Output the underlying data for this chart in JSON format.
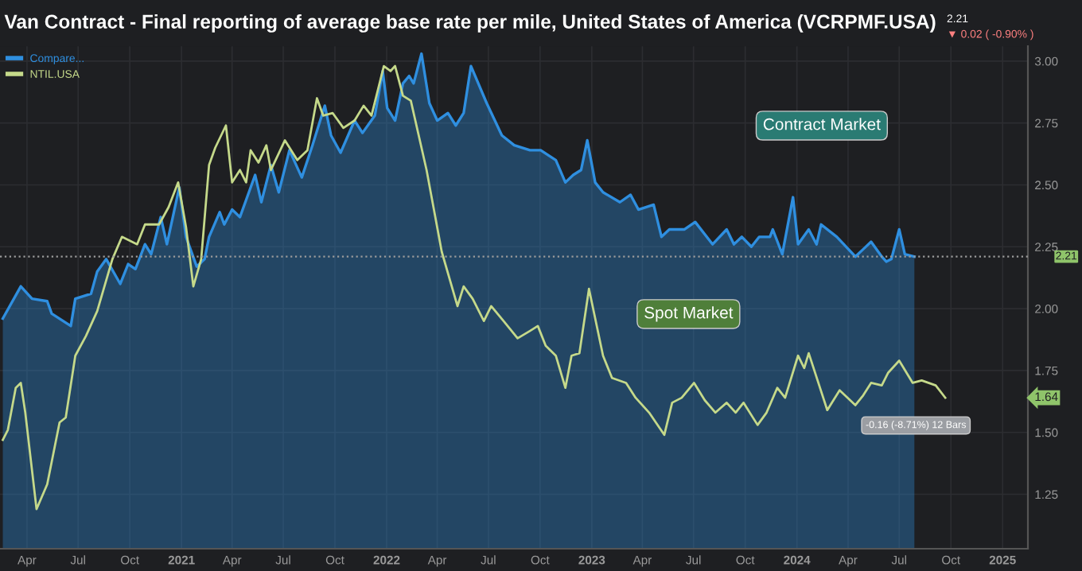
{
  "chart_data": {
    "type": "line",
    "title": "Van Contract - Final reporting of average base rate per mile, United States of America (VCRPMF.USA)",
    "xlim": [
      "2020-02-13",
      "2025-02-15"
    ],
    "ylim": [
      1.03,
      3.06
    ],
    "xticks": [
      {
        "value": "2020-04",
        "label": "Apr"
      },
      {
        "value": "2020-07",
        "label": "Jul"
      },
      {
        "value": "2020-10",
        "label": "Oct"
      },
      {
        "value": "2021",
        "label": "2021"
      },
      {
        "value": "2021-04",
        "label": "Apr"
      },
      {
        "value": "2021-07",
        "label": "Jul"
      },
      {
        "value": "2021-10",
        "label": "Oct"
      },
      {
        "value": "2022",
        "label": "2022"
      },
      {
        "value": "2022-04",
        "label": "Apr"
      },
      {
        "value": "2022-07",
        "label": "Jul"
      },
      {
        "value": "2022-10",
        "label": "Oct"
      },
      {
        "value": "2023",
        "label": "2023"
      },
      {
        "value": "2023-04",
        "label": "Apr"
      },
      {
        "value": "2023-07",
        "label": "Jul"
      },
      {
        "value": "2023-10",
        "label": "Oct"
      },
      {
        "value": "2024",
        "label": "2024"
      },
      {
        "value": "2024-04",
        "label": "Apr"
      },
      {
        "value": "2024-07",
        "label": "Jul"
      },
      {
        "value": "2024-10",
        "label": "Oct"
      },
      {
        "value": "2025",
        "label": "2025"
      }
    ],
    "yticks": [
      {
        "value": 1.25,
        "label": "1.25"
      },
      {
        "value": 1.5,
        "label": "1.50"
      },
      {
        "value": 1.75,
        "label": "1.75"
      },
      {
        "value": 2.0,
        "label": "2.00"
      },
      {
        "value": 2.25,
        "label": "2.25"
      },
      {
        "value": 2.5,
        "label": "2.50"
      },
      {
        "value": 2.75,
        "label": "2.75"
      },
      {
        "value": 3.0,
        "label": "3.00"
      }
    ],
    "grid": true,
    "legend": "top left",
    "series": [
      {
        "name": "Compare...",
        "type": "area",
        "color": "#2f8fe0",
        "x": [
          "2020-02-18",
          "2020-03-21",
          "2020-04-10",
          "2020-05-07",
          "2020-05-15",
          "2020-06-18",
          "2020-06-26",
          "2020-07-24",
          "2020-08-04",
          "2020-08-20",
          "2020-09-14",
          "2020-09-28",
          "2020-10-11",
          "2020-10-28",
          "2020-11-08",
          "2020-11-25",
          "2020-12-06",
          "2020-12-28",
          "2021-01-09",
          "2021-01-28",
          "2021-02-11",
          "2021-02-19",
          "2021-03-10",
          "2021-03-18",
          "2021-04-01",
          "2021-04-15",
          "2021-05-12",
          "2021-05-23",
          "2021-06-09",
          "2021-06-23",
          "2021-07-12",
          "2021-08-03",
          "2021-08-22",
          "2021-09-13",
          "2021-09-24",
          "2021-10-11",
          "2021-11-05",
          "2021-11-19",
          "2021-12-11",
          "2021-12-25",
          "2022-01-02",
          "2022-01-16",
          "2022-01-30",
          "2022-02-10",
          "2022-02-18",
          "2022-03-04",
          "2022-03-18",
          "2022-04-01",
          "2022-04-20",
          "2022-05-04",
          "2022-05-18",
          "2022-05-31",
          "2022-06-28",
          "2022-07-25",
          "2022-08-16",
          "2022-09-13",
          "2022-10-02",
          "2022-10-29",
          "2022-11-15",
          "2022-11-29",
          "2022-12-13",
          "2022-12-24",
          "2023-01-07",
          "2023-01-21",
          "2023-02-20",
          "2023-03-11",
          "2023-03-25",
          "2023-04-21",
          "2023-05-05",
          "2023-05-19",
          "2023-06-15",
          "2023-07-04",
          "2023-08-04",
          "2023-08-29",
          "2023-09-11",
          "2023-09-25",
          "2023-10-12",
          "2023-10-26",
          "2023-11-14",
          "2023-11-19",
          "2023-12-06",
          "2023-12-25",
          "2024-01-03",
          "2024-01-22",
          "2024-02-05",
          "2024-02-13",
          "2024-03-12",
          "2024-04-14",
          "2024-04-28",
          "2024-05-12",
          "2024-05-31",
          "2024-06-08",
          "2024-06-17",
          "2024-07-01",
          "2024-07-11",
          "2024-07-28"
        ],
        "values": [
          1.96,
          2.09,
          2.04,
          2.03,
          1.98,
          1.93,
          2.04,
          2.06,
          2.15,
          2.2,
          2.1,
          2.18,
          2.16,
          2.26,
          2.22,
          2.37,
          2.26,
          2.49,
          2.29,
          2.17,
          2.2,
          2.29,
          2.39,
          2.34,
          2.4,
          2.37,
          2.54,
          2.43,
          2.58,
          2.47,
          2.64,
          2.53,
          2.66,
          2.82,
          2.7,
          2.63,
          2.76,
          2.71,
          2.78,
          2.96,
          2.81,
          2.76,
          2.91,
          2.94,
          2.91,
          3.03,
          2.83,
          2.76,
          2.79,
          2.74,
          2.79,
          2.98,
          2.83,
          2.7,
          2.66,
          2.64,
          2.64,
          2.6,
          2.51,
          2.54,
          2.56,
          2.68,
          2.51,
          2.47,
          2.43,
          2.46,
          2.4,
          2.42,
          2.29,
          2.32,
          2.32,
          2.35,
          2.26,
          2.32,
          2.26,
          2.29,
          2.25,
          2.29,
          2.29,
          2.32,
          2.22,
          2.45,
          2.26,
          2.32,
          2.26,
          2.34,
          2.29,
          2.21,
          2.24,
          2.27,
          2.21,
          2.19,
          2.2,
          2.32,
          2.22,
          2.21
        ]
      },
      {
        "name": "NTIL.USA",
        "color": "#c5d98a",
        "x": [
          "2020-02-18",
          "2020-02-27",
          "2020-03-12",
          "2020-03-21",
          "2020-03-29",
          "2020-04-18",
          "2020-05-07",
          "2020-05-29",
          "2020-06-09",
          "2020-06-26",
          "2020-07-15",
          "2020-08-04",
          "2020-08-31",
          "2020-09-17",
          "2020-10-14",
          "2020-10-28",
          "2020-11-22",
          "2020-12-09",
          "2020-12-26",
          "2021-01-09",
          "2021-01-22",
          "2021-02-05",
          "2021-02-19",
          "2021-03-02",
          "2021-03-21",
          "2021-04-01",
          "2021-04-15",
          "2021-04-26",
          "2021-05-04",
          "2021-05-18",
          "2021-06-01",
          "2021-06-09",
          "2021-07-04",
          "2021-07-26",
          "2021-08-13",
          "2021-08-30",
          "2021-09-10",
          "2021-09-27",
          "2021-10-16",
          "2021-11-05",
          "2021-11-21",
          "2021-12-05",
          "2021-12-27",
          "2022-01-08",
          "2022-01-16",
          "2022-01-30",
          "2022-02-13",
          "2022-03-13",
          "2022-04-09",
          "2022-05-07",
          "2022-05-18",
          "2022-06-03",
          "2022-06-23",
          "2022-07-06",
          "2022-07-28",
          "2022-08-22",
          "2022-09-13",
          "2022-09-27",
          "2022-10-11",
          "2022-10-29",
          "2022-11-15",
          "2022-11-26",
          "2022-12-10",
          "2022-12-27",
          "2023-01-21",
          "2023-02-06",
          "2023-03-03",
          "2023-03-20",
          "2023-04-13",
          "2023-05-10",
          "2023-05-24",
          "2023-06-10",
          "2023-07-02",
          "2023-07-21",
          "2023-08-09",
          "2023-08-29",
          "2023-09-14",
          "2023-09-28",
          "2023-10-23",
          "2023-11-08",
          "2023-11-27",
          "2023-12-11",
          "2024-01-03",
          "2024-01-14",
          "2024-01-22",
          "2024-02-24",
          "2024-03-17",
          "2024-04-14",
          "2024-04-28",
          "2024-05-12",
          "2024-05-31",
          "2024-06-11",
          "2024-07-01",
          "2024-07-25",
          "2024-08-10",
          "2024-09-04",
          "2024-09-21"
        ],
        "values": [
          1.47,
          1.51,
          1.68,
          1.7,
          1.58,
          1.19,
          1.29,
          1.54,
          1.56,
          1.81,
          1.89,
          1.99,
          2.2,
          2.29,
          2.26,
          2.34,
          2.34,
          2.41,
          2.51,
          2.33,
          2.09,
          2.2,
          2.58,
          2.65,
          2.74,
          2.51,
          2.56,
          2.51,
          2.64,
          2.59,
          2.66,
          2.56,
          2.68,
          2.6,
          2.64,
          2.85,
          2.78,
          2.79,
          2.73,
          2.76,
          2.82,
          2.78,
          2.98,
          2.96,
          2.98,
          2.86,
          2.84,
          2.56,
          2.23,
          2.01,
          2.09,
          2.04,
          1.95,
          2.01,
          1.95,
          1.88,
          1.91,
          1.93,
          1.85,
          1.81,
          1.68,
          1.81,
          1.82,
          2.08,
          1.81,
          1.72,
          1.7,
          1.64,
          1.58,
          1.49,
          1.62,
          1.64,
          1.7,
          1.63,
          1.58,
          1.62,
          1.58,
          1.62,
          1.53,
          1.58,
          1.68,
          1.64,
          1.81,
          1.76,
          1.82,
          1.59,
          1.67,
          1.61,
          1.65,
          1.7,
          1.69,
          1.74,
          1.79,
          1.7,
          1.71,
          1.69,
          1.64
        ]
      }
    ],
    "ref_lines": [
      {
        "axis": "y",
        "value": 2.21,
        "label": "2.21",
        "color": "#9a9a9a",
        "line_style": "dotted"
      }
    ],
    "annotations": [
      "2.21",
      "▼ 0.02 ( -0.90% )",
      "1.64",
      "Contract Market",
      "Spot Market",
      "-0.16 (-8.71%) 12 Bars"
    ]
  }
}
